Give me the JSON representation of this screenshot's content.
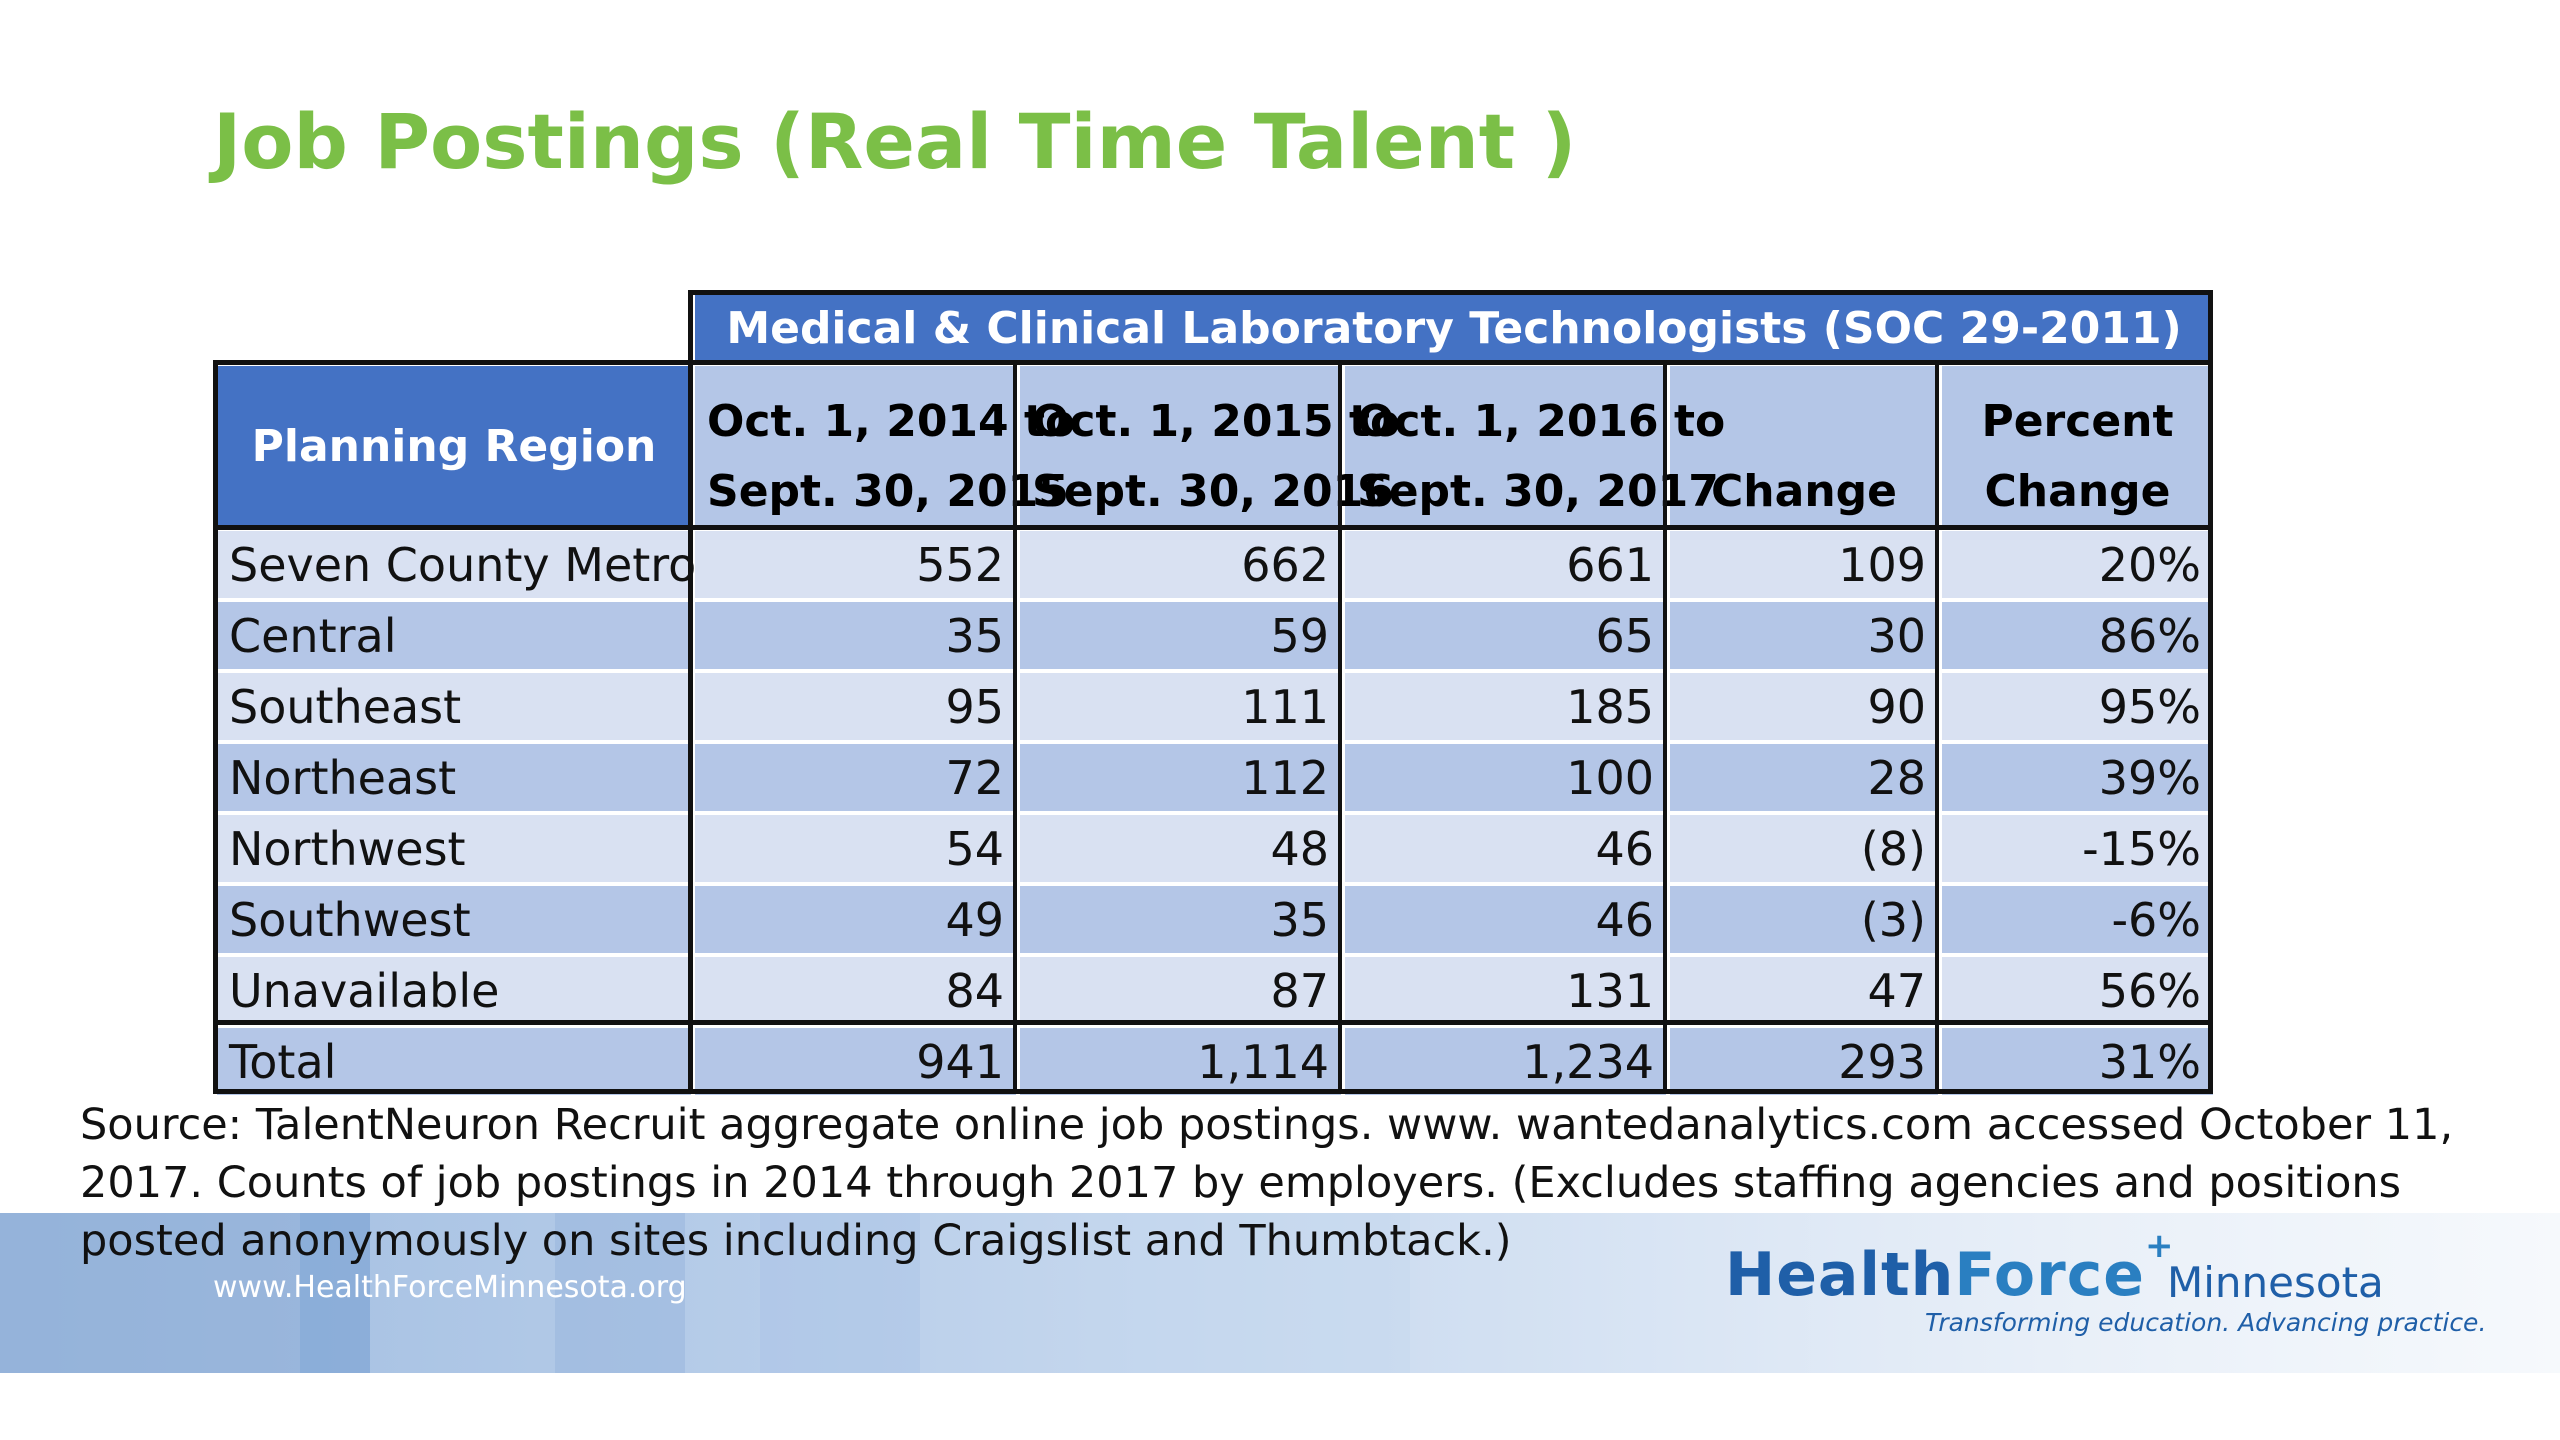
{
  "title": "Job Postings (Real Time Talent )",
  "table": {
    "group_header": "Medical & Clinical Laboratory Technologists (SOC 29-2011)",
    "columns": {
      "region": "Planning Region",
      "period1": [
        "Oct. 1, 2014 to",
        "Sept. 30, 2015"
      ],
      "period2": [
        "Oct. 1, 2015 to",
        "Sept. 30, 2016"
      ],
      "period3": [
        "Oct. 1, 2016 to",
        "Sept. 30, 2017"
      ],
      "change": "Change",
      "percent_change": [
        "Percent",
        "Change"
      ]
    },
    "rows": [
      {
        "region": "Seven County Metro",
        "p1": "552",
        "p2": "662",
        "p3": "661",
        "change": "109",
        "pct": "20%"
      },
      {
        "region": "Central",
        "p1": "35",
        "p2": "59",
        "p3": "65",
        "change": "30",
        "pct": "86%"
      },
      {
        "region": "Southeast",
        "p1": "95",
        "p2": "111",
        "p3": "185",
        "change": "90",
        "pct": "95%"
      },
      {
        "region": "Northeast",
        "p1": "72",
        "p2": "112",
        "p3": "100",
        "change": "28",
        "pct": "39%"
      },
      {
        "region": "Northwest",
        "p1": "54",
        "p2": "48",
        "p3": "46",
        "change": "(8)",
        "pct": "-15%"
      },
      {
        "region": "Southwest",
        "p1": "49",
        "p2": "35",
        "p3": "46",
        "change": "(3)",
        "pct": "-6%"
      },
      {
        "region": "Unavailable",
        "p1": "84",
        "p2": "87",
        "p3": "131",
        "change": "47",
        "pct": "56%"
      }
    ],
    "total": {
      "region": "Total",
      "p1": "941",
      "p2": "1,114",
      "p3": "1,234",
      "change": "293",
      "pct": "31%"
    }
  },
  "source_note": "Source: TalentNeuron Recruit aggregate online job postings. www. wantedanalytics.com accessed October 11, 2017. Counts of job postings in 2014 through 2017 by employers. (Excludes staffing agencies and positions posted anonymously on sites including Craigslist and Thumbtack.)",
  "footer": {
    "url": "www.HealthForceMinnesota.org",
    "brand_health": "Health",
    "brand_force": "Force",
    "brand_state": "Minnesota",
    "brand_plus": "+",
    "tagline": "Transforming education. Advancing practice."
  },
  "colors": {
    "title_green": "#7bbf47",
    "header_blue": "#4472c4",
    "band_light": "#d9e1f2",
    "band_dark": "#b4c6e7",
    "brand_blue": "#1f5fa8"
  }
}
